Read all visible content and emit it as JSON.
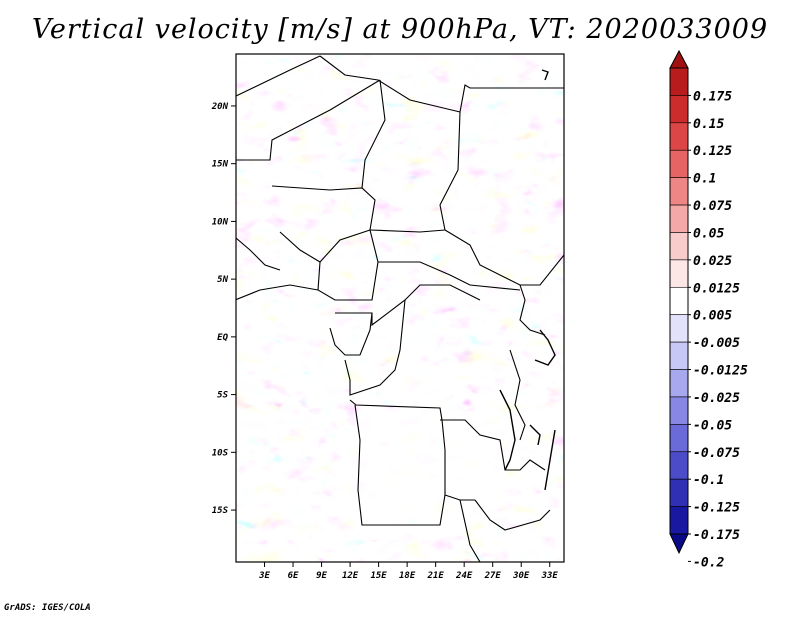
{
  "title": "Vertical velocity [m/s] at 900hPa, VT: 2020033009",
  "credit": "GrADS: IGES/COLA",
  "map": {
    "lat_labels": [
      "20N",
      "15N",
      "10N",
      "5N",
      "EQ",
      "5S",
      "10S",
      "15S"
    ],
    "lon_labels": [
      "3E",
      "6E",
      "9E",
      "12E",
      "15E",
      "18E",
      "21E",
      "24E",
      "27E",
      "30E",
      "33E"
    ],
    "lon_range": [
      0,
      34.5
    ],
    "lat_range": [
      -19.5,
      24.5
    ]
  },
  "colorbar": {
    "labels": [
      "0.175",
      "0.15",
      "0.125",
      "0.1",
      "0.075",
      "0.05",
      "0.025",
      "0.0125",
      "0.005",
      "-0.005",
      "-0.0125",
      "-0.025",
      "-0.05",
      "-0.075",
      "-0.1",
      "-0.125",
      "-0.175",
      "-0.2"
    ],
    "colors": [
      "#a01010",
      "#b81c1c",
      "#cc2c2c",
      "#dc4646",
      "#e66464",
      "#ee8686",
      "#f4a8a8",
      "#f9cccc",
      "#fde6e6",
      "#ffffff",
      "#e2e2fb",
      "#c8c8f6",
      "#a8a8ee",
      "#8888e4",
      "#6a6ad8",
      "#4c4cc8",
      "#3030b4",
      "#1818a0",
      "#0a0a88"
    ]
  }
}
